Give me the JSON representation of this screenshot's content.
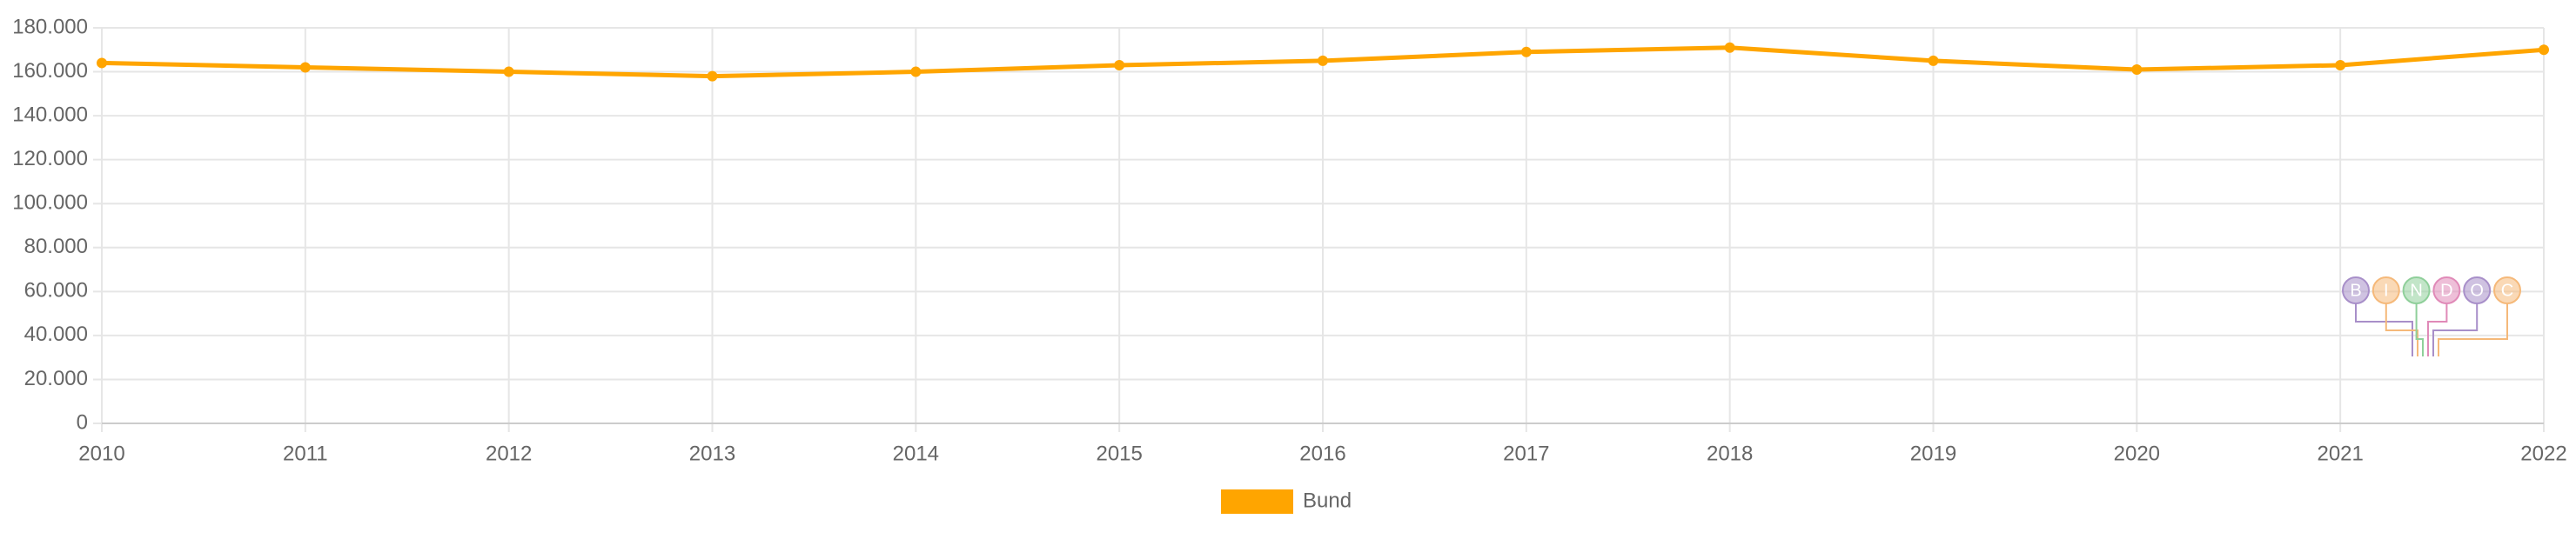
{
  "chart_data": {
    "type": "line",
    "categories": [
      "2010",
      "2011",
      "2012",
      "2013",
      "2014",
      "2015",
      "2016",
      "2017",
      "2018",
      "2019",
      "2020",
      "2021",
      "2022"
    ],
    "series": [
      {
        "name": "Bund",
        "color": "#ffa500",
        "values": [
          164000,
          162000,
          160000,
          158000,
          160000,
          163000,
          165000,
          169000,
          171000,
          165000,
          161000,
          163000,
          170000
        ]
      }
    ],
    "ylim": [
      0,
      180000
    ],
    "yticks": [
      0,
      {
        "value": 20000,
        "label": "20.000"
      },
      {
        "value": 40000,
        "label": "40.000"
      },
      {
        "value": 60000,
        "label": "60.000"
      },
      {
        "value": 80000,
        "label": "80.000"
      },
      {
        "value": 100000,
        "label": "100.000"
      },
      {
        "value": 120000,
        "label": "120.000"
      },
      {
        "value": 140000,
        "label": "140.000"
      },
      {
        "value": 160000,
        "label": "160.000"
      },
      {
        "value": 180000,
        "label": "180.000"
      }
    ],
    "grid": true,
    "legend": "bottom",
    "watermark": [
      "B",
      "I",
      "N",
      "D",
      "O",
      "C"
    ]
  }
}
